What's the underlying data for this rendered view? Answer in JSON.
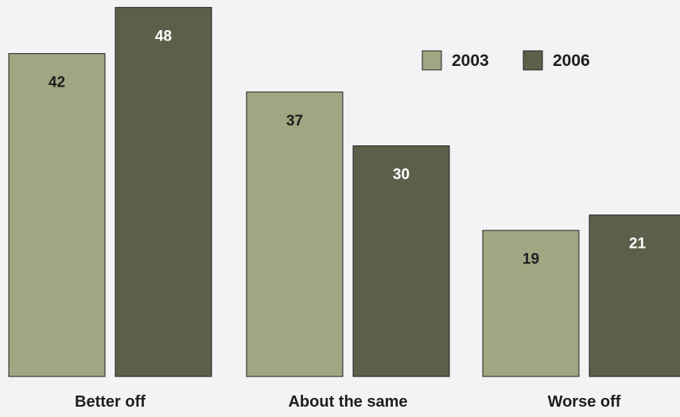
{
  "chart_data": {
    "type": "bar",
    "categories": [
      "Better off",
      "About the same",
      "Worse off"
    ],
    "series": [
      {
        "name": "2003",
        "values": [
          42,
          37,
          19
        ],
        "color": "#a2a582",
        "label_color": "#1e1e1e"
      },
      {
        "name": "2006",
        "values": [
          48,
          30,
          21
        ],
        "color": "#5e5f4a",
        "label_color": "#ffffff"
      }
    ],
    "ylim": [
      0,
      52
    ],
    "grid": false,
    "legend_position": "top-right",
    "title": "",
    "xlabel": "",
    "ylabel": ""
  }
}
